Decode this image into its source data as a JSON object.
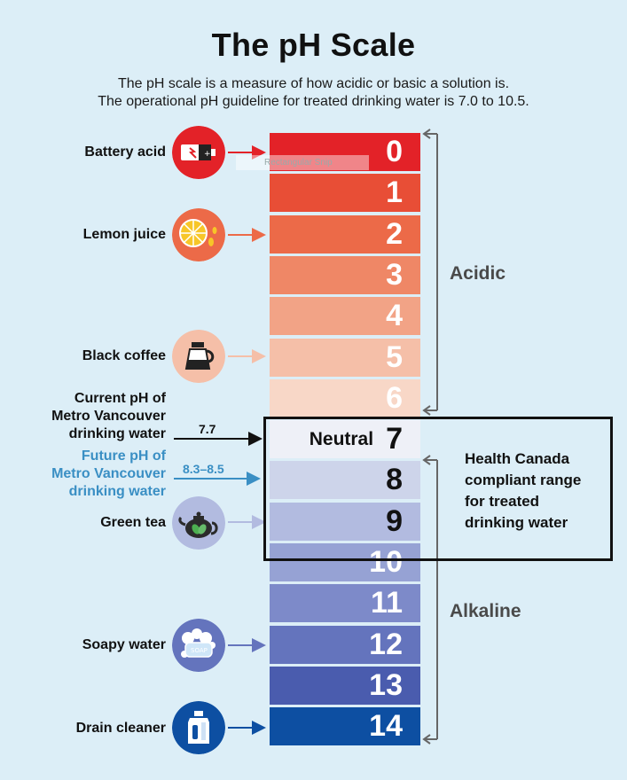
{
  "title": "The pH Scale",
  "subtitle_line1": "The pH scale is a measure of how acidic or basic a solution is.",
  "subtitle_line2": "The operational pH guideline for treated drinking water is 7.0 to 10.5.",
  "scale": [
    {
      "value": "0",
      "color": "#e32228"
    },
    {
      "value": "1",
      "color": "#e84e36"
    },
    {
      "value": "2",
      "color": "#ec6a48"
    },
    {
      "value": "3",
      "color": "#ef8766"
    },
    {
      "value": "4",
      "color": "#f2a386"
    },
    {
      "value": "5",
      "color": "#f5bfa8"
    },
    {
      "value": "6",
      "color": "#f8d7c7"
    },
    {
      "value": "7",
      "color": "#eef0f7"
    },
    {
      "value": "8",
      "color": "#cdd4ea"
    },
    {
      "value": "9",
      "color": "#b2bbe0"
    },
    {
      "value": "10",
      "color": "#96a2d4"
    },
    {
      "value": "11",
      "color": "#7d8ac9"
    },
    {
      "value": "12",
      "color": "#6474bd"
    },
    {
      "value": "13",
      "color": "#4a5cae"
    },
    {
      "value": "14",
      "color": "#0d4fa2"
    }
  ],
  "neutral_label": "Neutral",
  "substances": [
    {
      "label": "Battery acid",
      "icon": "battery-icon",
      "ph": 0
    },
    {
      "label": "Lemon juice",
      "icon": "lemon-icon",
      "ph": 2
    },
    {
      "label": "Black coffee",
      "icon": "coffee-pot-icon",
      "ph": 5
    },
    {
      "label": "Green tea",
      "icon": "teapot-icon",
      "ph": 9
    },
    {
      "label": "Soapy water",
      "icon": "soap-icon",
      "ph": 12
    },
    {
      "label": "Drain cleaner",
      "icon": "drain-cleaner-bottle-icon",
      "ph": 14
    }
  ],
  "current": {
    "line1": "Current pH of",
    "line2": "Metro Vancouver",
    "line3": "drinking water",
    "value": "7.7"
  },
  "future": {
    "line1": "Future pH of",
    "line2": "Metro Vancouver",
    "line3": "drinking water",
    "value": "8.3–8.5"
  },
  "ranges": {
    "acidic": "Acidic",
    "alkaline": "Alkaline"
  },
  "health_canada": {
    "line1": "Health Canada",
    "line2": "compliant range",
    "line3": "for treated",
    "line4": "drinking water"
  },
  "snip_text": "Rectangular Snip",
  "colors": {
    "background": "#dceef7",
    "future_blue": "#3a8fc4",
    "bracket_gray": "#666666"
  }
}
